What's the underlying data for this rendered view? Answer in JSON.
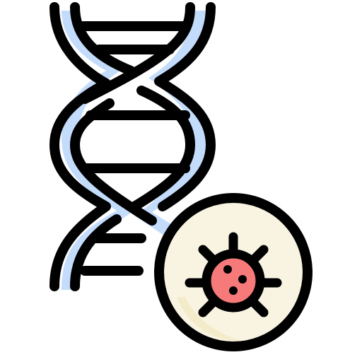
{
  "icon": {
    "name": "dna-virus-icon",
    "colors": {
      "outline": "#000000",
      "strand_fill": "#c4dcfb",
      "badge_fill": "#f9f4e1",
      "virus_fill": "#f77a7a",
      "background": "#ffffff"
    }
  }
}
